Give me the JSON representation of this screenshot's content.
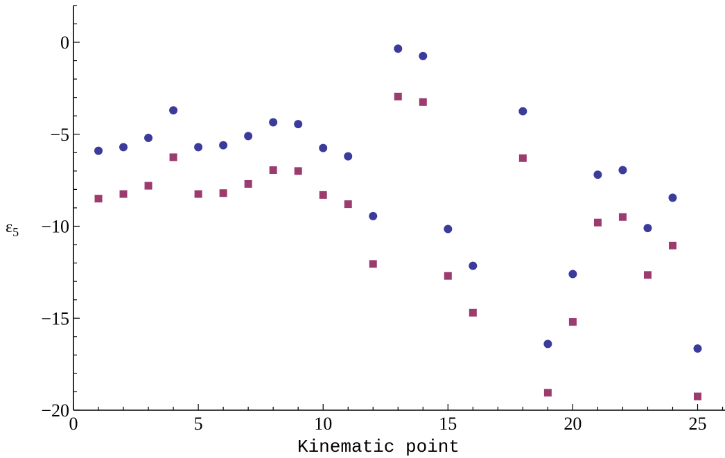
{
  "chart_data": {
    "type": "scatter",
    "title": "",
    "xlabel": "Kinematic point",
    "ylabel_main": "ε",
    "ylabel_sub": "5",
    "xlim": [
      0,
      26
    ],
    "ylim": [
      -20,
      2
    ],
    "x_ticks": [
      0,
      5,
      10,
      15,
      20,
      25
    ],
    "y_ticks": [
      0,
      -5,
      -10,
      -15,
      -20
    ],
    "x_tick_labels": [
      "0",
      "5",
      "10",
      "15",
      "20",
      "25"
    ],
    "y_tick_labels": [
      "0",
      "−5",
      "−10",
      "−15",
      "−20"
    ],
    "grid": false,
    "series": [
      {
        "marker": "circle",
        "color": "#3b3b9c",
        "points": [
          [
            1,
            -5.9
          ],
          [
            2,
            -5.7
          ],
          [
            3,
            -5.2
          ],
          [
            4,
            -3.7
          ],
          [
            5,
            -5.7
          ],
          [
            6,
            -5.6
          ],
          [
            7,
            -5.1
          ],
          [
            8,
            -4.35
          ],
          [
            9,
            -4.45
          ],
          [
            10,
            -5.75
          ],
          [
            11,
            -6.2
          ],
          [
            12,
            -9.45
          ],
          [
            13,
            -0.35
          ],
          [
            14,
            -0.75
          ],
          [
            15,
            -10.15
          ],
          [
            16,
            -12.15
          ],
          [
            18,
            -3.75
          ],
          [
            19,
            -16.4
          ],
          [
            20,
            -12.6
          ],
          [
            21,
            -7.2
          ],
          [
            22,
            -6.95
          ],
          [
            23,
            -10.1
          ],
          [
            24,
            -8.45
          ],
          [
            25,
            -16.65
          ]
        ]
      },
      {
        "marker": "square",
        "color": "#9b3b6e",
        "points": [
          [
            1,
            -8.5
          ],
          [
            2,
            -8.25
          ],
          [
            3,
            -7.8
          ],
          [
            4,
            -6.25
          ],
          [
            5,
            -8.25
          ],
          [
            6,
            -8.2
          ],
          [
            7,
            -7.7
          ],
          [
            8,
            -6.95
          ],
          [
            9,
            -7.0
          ],
          [
            10,
            -8.3
          ],
          [
            11,
            -8.8
          ],
          [
            12,
            -12.05
          ],
          [
            13,
            -2.95
          ],
          [
            14,
            -3.25
          ],
          [
            15,
            -12.7
          ],
          [
            16,
            -14.7
          ],
          [
            18,
            -6.3
          ],
          [
            19,
            -19.05
          ],
          [
            20,
            -15.2
          ],
          [
            21,
            -9.8
          ],
          [
            22,
            -9.5
          ],
          [
            23,
            -12.65
          ],
          [
            24,
            -11.05
          ],
          [
            25,
            -19.25
          ]
        ]
      }
    ]
  }
}
